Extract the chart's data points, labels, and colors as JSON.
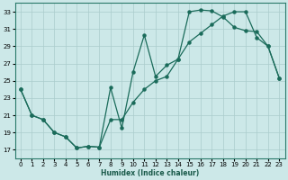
{
  "xlabel": "Humidex (Indice chaleur)",
  "bg_color": "#cce8e8",
  "grid_color": "#aacccc",
  "line_color": "#1a6b5a",
  "xlim": [
    -0.5,
    23.5
  ],
  "ylim": [
    16,
    34
  ],
  "yticks": [
    17,
    19,
    21,
    23,
    25,
    27,
    29,
    31,
    33
  ],
  "xticks": [
    0,
    1,
    2,
    3,
    4,
    5,
    6,
    7,
    8,
    9,
    10,
    11,
    12,
    13,
    14,
    15,
    16,
    17,
    18,
    19,
    20,
    21,
    22,
    23
  ],
  "line1_x": [
    0,
    1,
    2,
    3,
    4,
    5,
    6,
    7,
    8,
    9,
    10,
    11,
    12,
    13,
    14,
    15,
    16,
    17,
    18,
    19,
    20,
    21,
    22,
    23
  ],
  "line1_y": [
    24.0,
    21.0,
    20.5,
    19.0,
    18.5,
    17.2,
    17.4,
    17.3,
    24.2,
    19.5,
    26.0,
    30.3,
    25.5,
    26.8,
    27.5,
    33.0,
    33.2,
    33.1,
    32.4,
    31.2,
    30.8,
    30.7,
    29.0,
    25.3
  ],
  "line2_x": [
    0,
    1,
    2,
    3,
    4,
    5,
    6,
    7,
    8,
    9,
    10,
    11,
    12,
    13,
    14,
    15,
    16,
    17,
    18,
    19,
    20,
    21,
    22,
    23
  ],
  "line2_y": [
    24.0,
    21.0,
    20.5,
    19.0,
    18.5,
    17.2,
    17.4,
    17.3,
    20.5,
    20.5,
    22.5,
    24.0,
    25.0,
    25.5,
    27.5,
    29.5,
    30.5,
    31.5,
    32.5,
    33.0,
    33.0,
    30.0,
    29.0,
    25.3
  ]
}
